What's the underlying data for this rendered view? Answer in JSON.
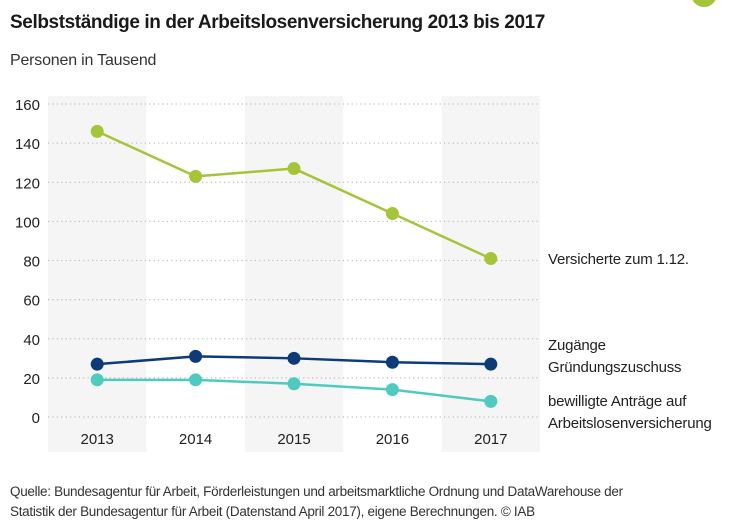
{
  "header": {
    "title": "Selbstständige in der Arbeitslosenversicherung 2013 bis 2017",
    "subtitle": "Personen in Tausend"
  },
  "footer": {
    "line1": "Quelle: Bundesagentur für Arbeit, Förderleistungen und arbeitsmarktliche Ordnung und DataWarehouse der",
    "line2": "Statistik der Bundesagentur für Arbeit (Datenstand April 2017), eigene Berechnungen. © IAB"
  },
  "colors": {
    "band": "#f5f5f5",
    "grid": "#bdbdbd",
    "badge": "#a5c438"
  },
  "chart_data": {
    "type": "line",
    "title": "Selbstständige in der Arbeitslosenversicherung 2013 bis 2017",
    "subtitle": "Personen in Tausend",
    "xlabel": "",
    "ylabel": "Personen in Tausend",
    "categories": [
      "2013",
      "2014",
      "2015",
      "2016",
      "2017"
    ],
    "ylim": [
      0,
      160
    ],
    "yticks": [
      0,
      20,
      40,
      60,
      80,
      100,
      120,
      140,
      160
    ],
    "grid": true,
    "legend_placement": "right (end-of-line labels)",
    "series": [
      {
        "name": "Versicherte zum 1.12.",
        "label_lines": [
          "Versicherte zum 1.12."
        ],
        "color": "#a5c438",
        "values": [
          146,
          123,
          127,
          104,
          81
        ]
      },
      {
        "name": "Zugänge Gründungszuschuss",
        "label_lines": [
          "Zugänge",
          "Gründungszuschuss"
        ],
        "color": "#0d3b7a",
        "values": [
          27,
          31,
          30,
          28,
          27
        ]
      },
      {
        "name": "bewilligte Anträge auf Arbeitslosenversicherung",
        "label_lines": [
          "bewilligte Anträge auf",
          "Arbeitslosenversicherung"
        ],
        "color": "#4ecbbf",
        "values": [
          19,
          19,
          17,
          14,
          8
        ]
      }
    ]
  }
}
